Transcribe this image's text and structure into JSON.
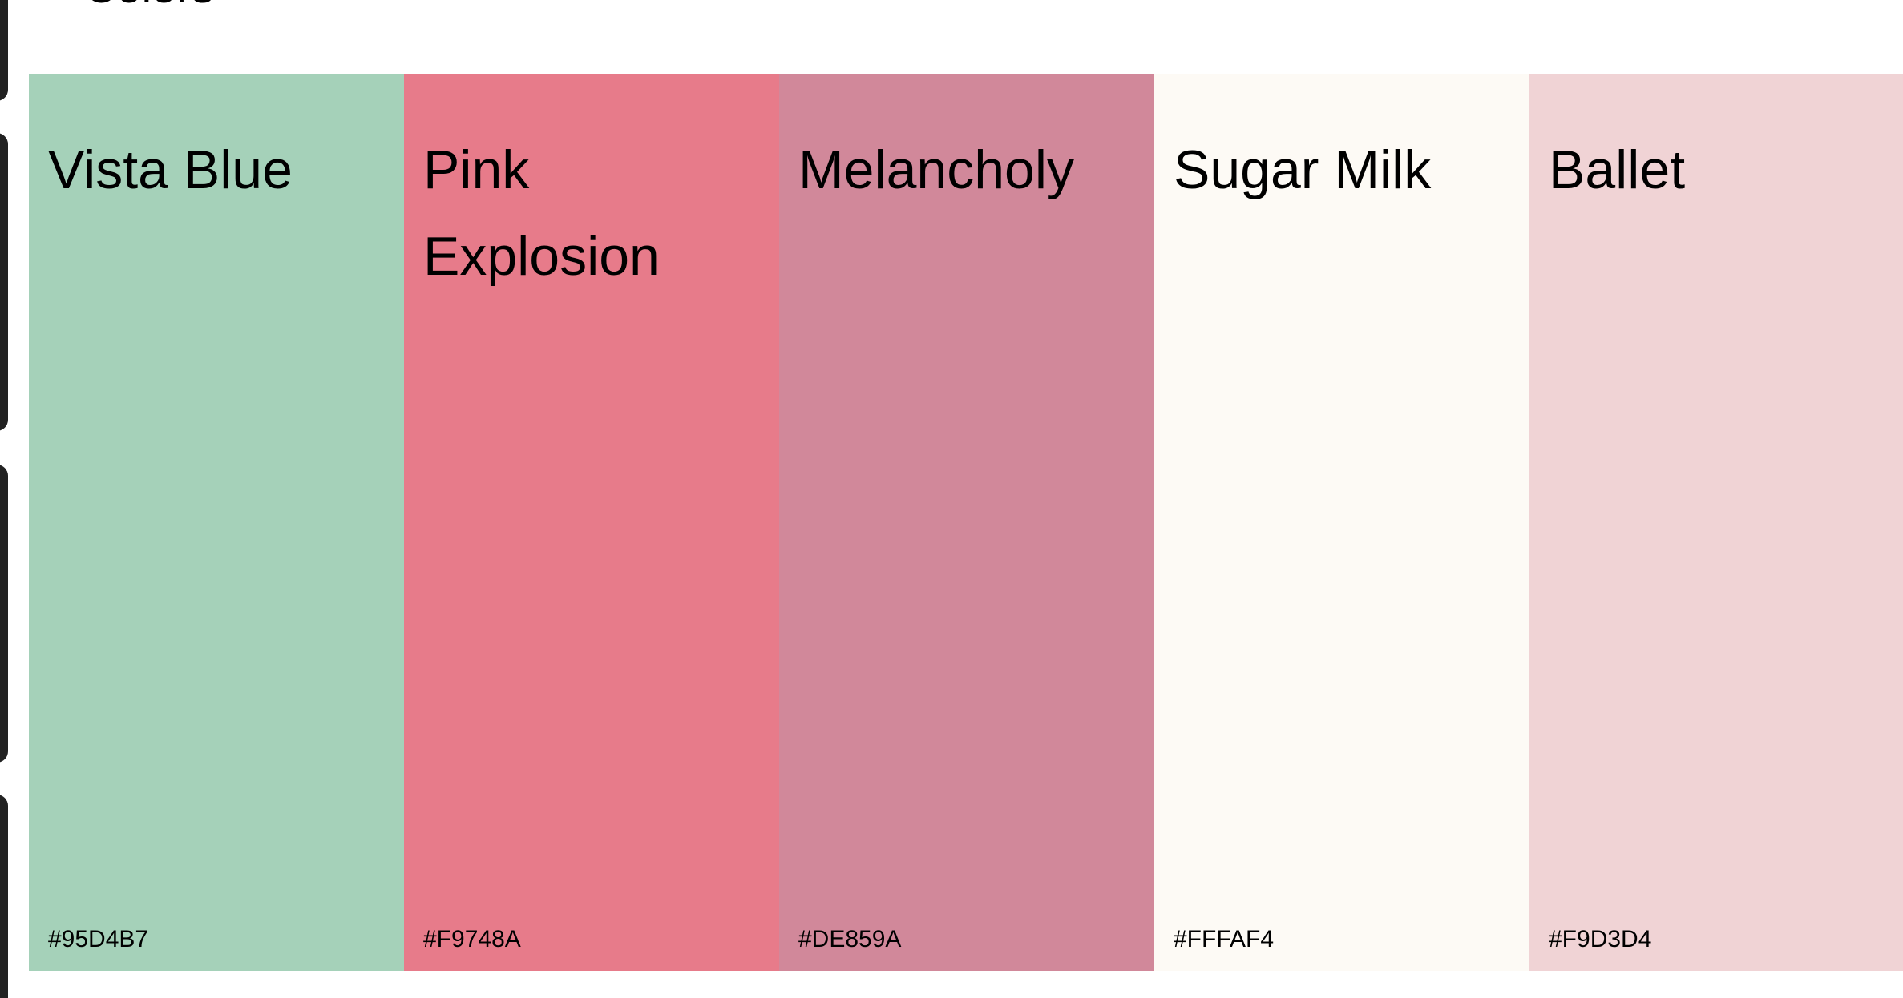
{
  "section": {
    "title": "Colors"
  },
  "swatches": [
    {
      "name": "Vista Blue",
      "hex": "#95D4B7",
      "display_color": "#A5D1B9"
    },
    {
      "name": "Pink Explosion",
      "hex": "#F9748A",
      "display_color": "#E77B8A"
    },
    {
      "name": "Melancholy",
      "hex": "#DE859A",
      "display_color": "#D1889A"
    },
    {
      "name": "Sugar Milk",
      "hex": "#FFFAF4",
      "display_color": "#FDFAF5"
    },
    {
      "name": "Ballet",
      "hex": "#F9D3D4",
      "display_color": "#F0D3D5"
    }
  ]
}
